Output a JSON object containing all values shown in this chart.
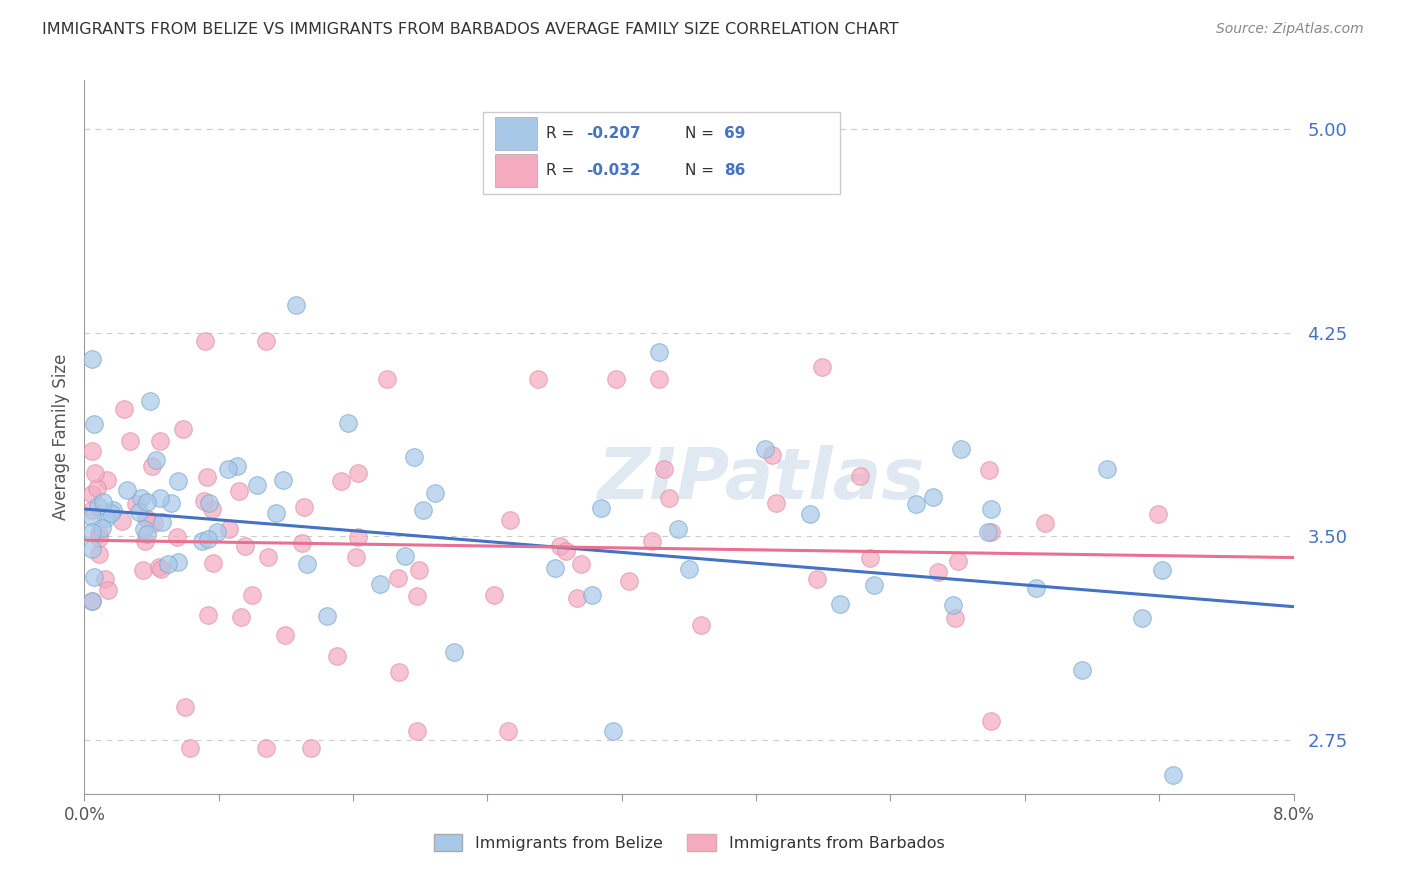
{
  "title": "IMMIGRANTS FROM BELIZE VS IMMIGRANTS FROM BARBADOS AVERAGE FAMILY SIZE CORRELATION CHART",
  "source": "Source: ZipAtlas.com",
  "ylabel": "Average Family Size",
  "yticks": [
    2.75,
    3.5,
    4.25,
    5.0
  ],
  "xlim": [
    0.0,
    0.08
  ],
  "ylim": [
    2.55,
    5.18
  ],
  "legend_r_belize": "R = -0.207",
  "legend_n_belize": "N = 69",
  "legend_r_barbados": "R = -0.032",
  "legend_n_barbados": "N = 86",
  "belize_color": "#a8c8e8",
  "barbados_color": "#f5aac0",
  "belize_line_color": "#4472c4",
  "barbados_line_color": "#e87090",
  "watermark": "ZIPatlas",
  "background_color": "#ffffff",
  "belize_slope": -4.5,
  "belize_intercept": 3.6,
  "barbados_slope": -0.8,
  "barbados_intercept": 3.485
}
